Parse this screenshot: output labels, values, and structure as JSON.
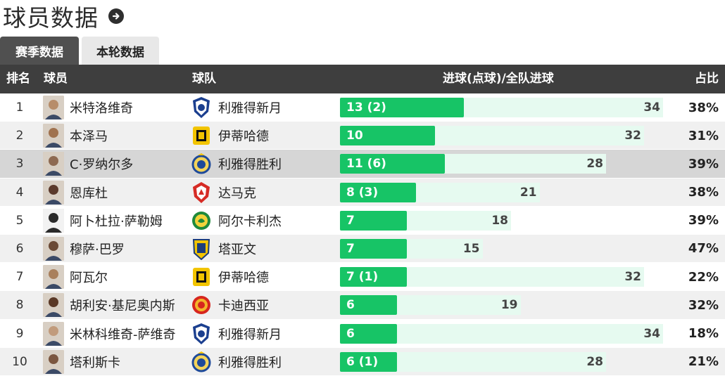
{
  "header": {
    "title": "球员数据",
    "more_icon": "arrow-right-circle-icon"
  },
  "tabs": [
    {
      "label": "赛季数据",
      "active": true
    },
    {
      "label": "本轮数据",
      "active": false
    }
  ],
  "table": {
    "columns": {
      "rank": "排名",
      "player": "球员",
      "team": "球队",
      "goals": "进球(点球)/全队进球",
      "pct": "占比"
    },
    "colors": {
      "bar": "#17c466",
      "track": "#e6faf0",
      "header_bg": "#3e3e3e"
    },
    "rows": [
      {
        "rank": "1",
        "player": "米特洛维奇",
        "team": "利雅得新月",
        "team_badge": "al-hilal-badge",
        "goals": 13,
        "goals_label": "13 (2)",
        "team_goals": 34,
        "team_goals_label": "34",
        "pct": "38%"
      },
      {
        "rank": "2",
        "player": "本泽马",
        "team": "伊蒂哈德",
        "team_badge": "al-ittihad-badge",
        "goals": 10,
        "goals_label": "10",
        "team_goals": 32,
        "team_goals_label": "32",
        "pct": "31%"
      },
      {
        "rank": "3",
        "player": "C·罗纳尔多",
        "team": "利雅得胜利",
        "team_badge": "al-nassr-badge",
        "goals": 11,
        "goals_label": "11 (6)",
        "team_goals": 28,
        "team_goals_label": "28",
        "pct": "39%",
        "highlight": true
      },
      {
        "rank": "4",
        "player": "恩库杜",
        "team": "达马克",
        "team_badge": "damac-badge",
        "goals": 8,
        "goals_label": "8 (3)",
        "team_goals": 21,
        "team_goals_label": "21",
        "pct": "38%"
      },
      {
        "rank": "5",
        "player": "阿卜杜拉·萨勒姆",
        "team": "阿尔卡利杰",
        "team_badge": "al-khaleej-badge",
        "goals": 7,
        "goals_label": "7",
        "team_goals": 18,
        "team_goals_label": "18",
        "pct": "39%"
      },
      {
        "rank": "6",
        "player": "穆萨·巴罗",
        "team": "塔亚文",
        "team_badge": "al-taawoun-badge",
        "goals": 7,
        "goals_label": "7",
        "team_goals": 15,
        "team_goals_label": "15",
        "pct": "47%"
      },
      {
        "rank": "7",
        "player": "阿瓦尔",
        "team": "伊蒂哈德",
        "team_badge": "al-ittihad-badge",
        "goals": 7,
        "goals_label": "7 (1)",
        "team_goals": 32,
        "team_goals_label": "32",
        "pct": "22%"
      },
      {
        "rank": "8",
        "player": "胡利安·基尼奥内斯",
        "team": "卡迪西亚",
        "team_badge": "al-qadsiah-badge",
        "goals": 6,
        "goals_label": "6",
        "team_goals": 19,
        "team_goals_label": "19",
        "pct": "32%"
      },
      {
        "rank": "9",
        "player": "米林科维奇-萨维奇",
        "team": "利雅得新月",
        "team_badge": "al-hilal-badge",
        "goals": 6,
        "goals_label": "6",
        "team_goals": 34,
        "team_goals_label": "34",
        "pct": "18%"
      },
      {
        "rank": "10",
        "player": "塔利斯卡",
        "team": "利雅得胜利",
        "team_badge": "al-nassr-badge",
        "goals": 6,
        "goals_label": "6 (1)",
        "team_goals": 28,
        "team_goals_label": "28",
        "pct": "21%"
      }
    ]
  }
}
